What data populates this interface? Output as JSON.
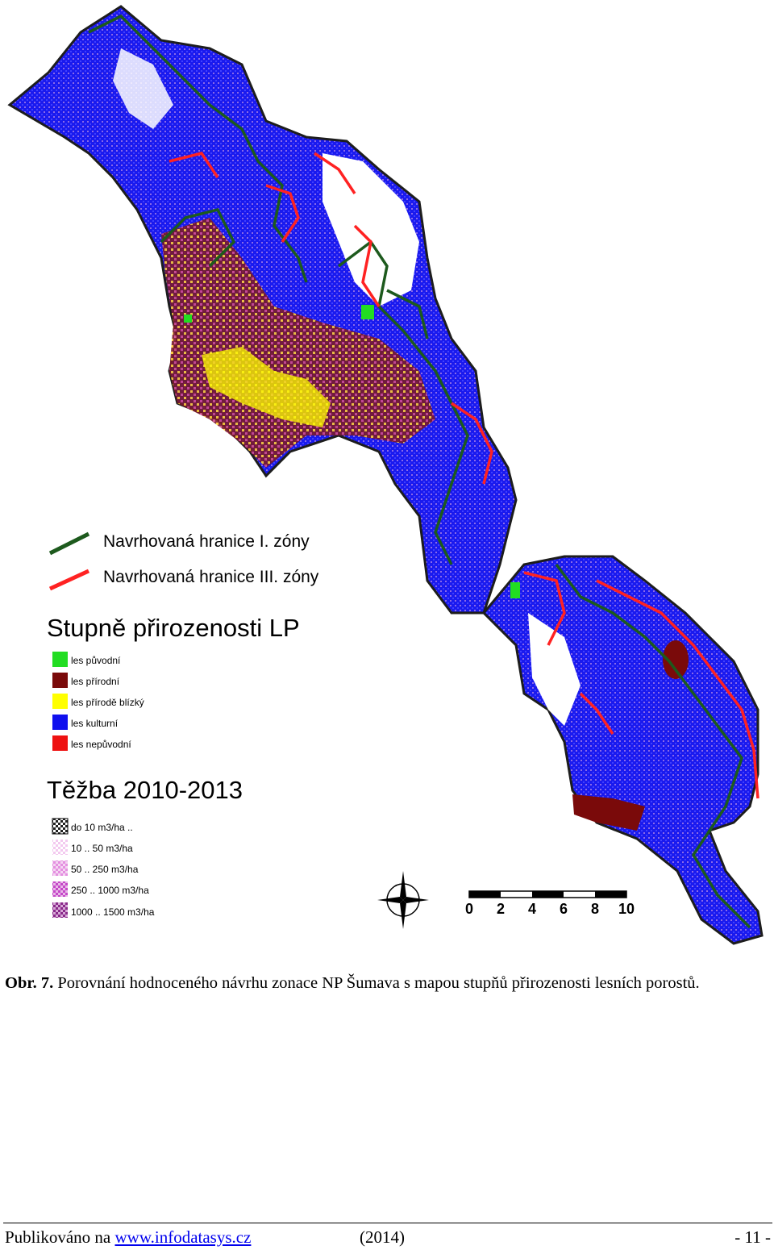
{
  "legend": {
    "boundaries": [
      {
        "label": "Navrhovaná hranice I. zóny",
        "color": "#1d5a1d"
      },
      {
        "label": "Navrhovaná hranice III. zóny",
        "color": "#ff2222"
      }
    ],
    "naturalness_title": "Stupně přirozenosti LP",
    "naturalness_items": [
      {
        "label": "les původní",
        "color": "#22dd22"
      },
      {
        "label": "les přírodní",
        "color": "#7a0a0a"
      },
      {
        "label": "les přírodě blízký",
        "color": "#ffff00"
      },
      {
        "label": "les kulturní",
        "color": "#1010ee"
      },
      {
        "label": "les nepůvodní",
        "color": "#ee1111"
      }
    ],
    "harvest_title": "Těžba 2010-2013",
    "harvest_items": [
      {
        "label": "do 10 m3/ha ..",
        "color": "#222222"
      },
      {
        "label": "10 .. 50 m3/ha",
        "color": "#f3c9ef"
      },
      {
        "label": "50 .. 250 m3/ha",
        "color": "#e48fe0"
      },
      {
        "label": "250 .. 1000 m3/ha",
        "color": "#c548c8"
      },
      {
        "label": "1000 .. 1500 m3/ha",
        "color": "#8a2a8a"
      }
    ]
  },
  "scale_bar": {
    "labels": [
      "0",
      "2",
      "4",
      "6",
      "8",
      "10"
    ]
  },
  "caption": {
    "label": "Obr. 7.",
    "text": "Porovnání hodnoceného návrhu zonace NP Šumava s mapou stupňů přirozenosti lesních porostů."
  },
  "footer": {
    "published": "Publikováno na",
    "link": "www.infodatasys.cz",
    "year": "(2014)",
    "page": "- 11 -"
  }
}
